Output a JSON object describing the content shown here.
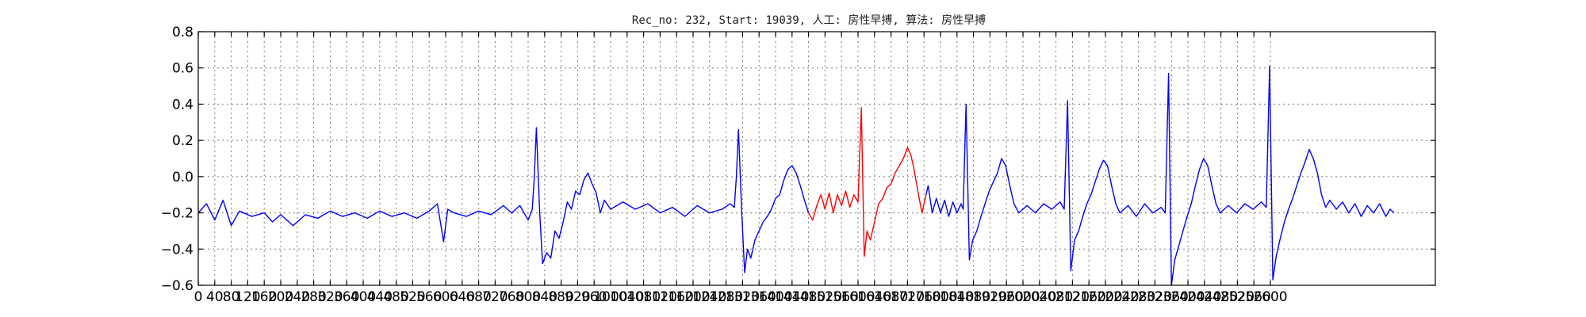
{
  "chart_data": {
    "type": "line",
    "title": "Rec_no: 232, Start: 19039, 人工: 房性早搏, 算法: 房性早搏",
    "xlabel": "",
    "ylabel": "",
    "xlim": [
      0,
      3000
    ],
    "ylim": [
      -0.6,
      0.8
    ],
    "grid": true,
    "yticks": [
      -0.6,
      -0.4,
      -0.2,
      0.0,
      0.2,
      0.4,
      0.6,
      0.8
    ],
    "ytick_labels": [
      "−0.6",
      "−0.4",
      "−0.2",
      "0.0",
      "0.2",
      "0.4",
      "0.6",
      "0.8"
    ],
    "xticks": [
      0,
      40,
      80,
      120,
      160,
      200,
      240,
      280,
      320,
      360,
      400,
      440,
      480,
      520,
      560,
      600,
      640,
      680,
      720,
      760,
      800,
      840,
      880,
      920,
      960,
      1000,
      1040,
      1080,
      1120,
      1160,
      1200,
      1240,
      1280,
      1320,
      1360,
      1400,
      1440,
      1480,
      1520,
      1560,
      1600,
      1640,
      1680,
      1720,
      1760,
      1800,
      1840,
      1880,
      1920,
      1960,
      2000,
      2040,
      2080,
      2120,
      2160,
      2200,
      2240,
      2280,
      2320,
      2360,
      2400,
      2440,
      2480,
      2520,
      2560,
      2600
    ],
    "xtick_labels": [
      "0",
      "40",
      "80",
      "120",
      "160",
      "200",
      "240",
      "280",
      "320",
      "360",
      "400",
      "440",
      "480",
      "520",
      "560",
      "600",
      "640",
      "680",
      "720",
      "760",
      "800",
      "840",
      "880",
      "920",
      "960",
      "1000",
      "1040",
      "1080",
      "1120",
      "1160",
      "1200",
      "1240",
      "1280",
      "1320",
      "1360",
      "1400",
      "1440",
      "1480",
      "1520",
      "1560",
      "1600",
      "1640",
      "1680",
      "1720",
      "1760",
      "1800",
      "1840",
      "1880",
      "1920",
      "1960",
      "2000",
      "2040",
      "2080",
      "2120",
      "2160",
      "2200",
      "2240",
      "2280",
      "2320",
      "2360",
      "2400",
      "2440",
      "2480",
      "2520",
      "2560",
      "2600"
    ],
    "series": [
      {
        "color": "#0000ff",
        "points": [
          [
            0,
            -0.2
          ],
          [
            20,
            -0.15
          ],
          [
            40,
            -0.24
          ],
          [
            60,
            -0.13
          ],
          [
            80,
            -0.27
          ],
          [
            100,
            -0.19
          ],
          [
            130,
            -0.22
          ],
          [
            160,
            -0.2
          ],
          [
            180,
            -0.25
          ],
          [
            200,
            -0.21
          ],
          [
            230,
            -0.27
          ],
          [
            260,
            -0.21
          ],
          [
            290,
            -0.23
          ],
          [
            320,
            -0.19
          ],
          [
            350,
            -0.22
          ],
          [
            380,
            -0.2
          ],
          [
            410,
            -0.23
          ],
          [
            440,
            -0.19
          ],
          [
            470,
            -0.22
          ],
          [
            500,
            -0.2
          ],
          [
            530,
            -0.23
          ],
          [
            560,
            -0.19
          ],
          [
            580,
            -0.15
          ],
          [
            595,
            -0.36
          ],
          [
            605,
            -0.18
          ],
          [
            620,
            -0.2
          ],
          [
            650,
            -0.22
          ],
          [
            680,
            -0.19
          ],
          [
            710,
            -0.21
          ],
          [
            740,
            -0.16
          ],
          [
            760,
            -0.2
          ],
          [
            780,
            -0.16
          ],
          [
            800,
            -0.24
          ],
          [
            810,
            -0.18
          ],
          [
            815,
            0.0
          ],
          [
            820,
            0.27
          ],
          [
            828,
            -0.2
          ],
          [
            835,
            -0.48
          ],
          [
            845,
            -0.42
          ],
          [
            855,
            -0.45
          ],
          [
            865,
            -0.3
          ],
          [
            875,
            -0.34
          ],
          [
            885,
            -0.25
          ],
          [
            895,
            -0.14
          ],
          [
            905,
            -0.18
          ],
          [
            915,
            -0.08
          ],
          [
            925,
            -0.1
          ],
          [
            935,
            -0.02
          ],
          [
            945,
            0.02
          ],
          [
            955,
            -0.04
          ],
          [
            965,
            -0.09
          ],
          [
            975,
            -0.2
          ],
          [
            985,
            -0.13
          ],
          [
            1000,
            -0.18
          ],
          [
            1030,
            -0.14
          ],
          [
            1060,
            -0.18
          ],
          [
            1090,
            -0.15
          ],
          [
            1120,
            -0.2
          ],
          [
            1150,
            -0.17
          ],
          [
            1180,
            -0.22
          ],
          [
            1210,
            -0.16
          ],
          [
            1240,
            -0.2
          ],
          [
            1270,
            -0.18
          ],
          [
            1290,
            -0.15
          ],
          [
            1300,
            -0.17
          ],
          [
            1305,
            0.0
          ],
          [
            1310,
            0.26
          ],
          [
            1318,
            -0.2
          ],
          [
            1325,
            -0.53
          ],
          [
            1332,
            -0.4
          ],
          [
            1340,
            -0.45
          ],
          [
            1350,
            -0.35
          ],
          [
            1360,
            -0.3
          ],
          [
            1370,
            -0.25
          ],
          [
            1380,
            -0.22
          ],
          [
            1390,
            -0.18
          ],
          [
            1400,
            -0.12
          ],
          [
            1410,
            -0.1
          ],
          [
            1420,
            -0.02
          ],
          [
            1430,
            0.04
          ],
          [
            1440,
            0.06
          ],
          [
            1450,
            0.02
          ],
          [
            1460,
            -0.05
          ],
          [
            1470,
            -0.13
          ],
          [
            1480,
            -0.2
          ]
        ]
      },
      {
        "color": "#ff0000",
        "points": [
          [
            1480,
            -0.2
          ],
          [
            1490,
            -0.24
          ],
          [
            1500,
            -0.16
          ],
          [
            1510,
            -0.1
          ],
          [
            1520,
            -0.18
          ],
          [
            1530,
            -0.09
          ],
          [
            1540,
            -0.2
          ],
          [
            1550,
            -0.1
          ],
          [
            1560,
            -0.16
          ],
          [
            1570,
            -0.08
          ],
          [
            1580,
            -0.17
          ],
          [
            1590,
            -0.1
          ],
          [
            1600,
            -0.14
          ],
          [
            1608,
            0.38
          ],
          [
            1615,
            -0.44
          ],
          [
            1622,
            -0.3
          ],
          [
            1630,
            -0.35
          ],
          [
            1640,
            -0.25
          ],
          [
            1650,
            -0.15
          ],
          [
            1660,
            -0.12
          ],
          [
            1670,
            -0.06
          ],
          [
            1680,
            -0.04
          ],
          [
            1690,
            0.02
          ],
          [
            1700,
            0.06
          ],
          [
            1710,
            0.1
          ],
          [
            1720,
            0.16
          ],
          [
            1728,
            0.12
          ],
          [
            1735,
            0.05
          ],
          [
            1745,
            -0.08
          ],
          [
            1755,
            -0.2
          ],
          [
            1765,
            -0.1
          ]
        ]
      },
      {
        "color": "#0000ff",
        "points": [
          [
            1765,
            -0.1
          ],
          [
            1770,
            -0.05
          ],
          [
            1780,
            -0.2
          ],
          [
            1790,
            -0.12
          ],
          [
            1800,
            -0.2
          ],
          [
            1810,
            -0.13
          ],
          [
            1820,
            -0.22
          ],
          [
            1830,
            -0.14
          ],
          [
            1840,
            -0.2
          ],
          [
            1850,
            -0.15
          ],
          [
            1855,
            -0.18
          ],
          [
            1862,
            0.4
          ],
          [
            1870,
            -0.46
          ],
          [
            1878,
            -0.35
          ],
          [
            1888,
            -0.3
          ],
          [
            1898,
            -0.22
          ],
          [
            1908,
            -0.15
          ],
          [
            1918,
            -0.08
          ],
          [
            1928,
            -0.03
          ],
          [
            1938,
            0.02
          ],
          [
            1948,
            0.1
          ],
          [
            1958,
            0.06
          ],
          [
            1968,
            -0.05
          ],
          [
            1978,
            -0.15
          ],
          [
            1990,
            -0.2
          ],
          [
            2010,
            -0.16
          ],
          [
            2030,
            -0.2
          ],
          [
            2050,
            -0.15
          ],
          [
            2070,
            -0.18
          ],
          [
            2090,
            -0.14
          ],
          [
            2100,
            -0.18
          ],
          [
            2108,
            0.42
          ],
          [
            2116,
            -0.52
          ],
          [
            2125,
            -0.35
          ],
          [
            2135,
            -0.3
          ],
          [
            2145,
            -0.22
          ],
          [
            2155,
            -0.15
          ],
          [
            2165,
            -0.1
          ],
          [
            2175,
            -0.03
          ],
          [
            2185,
            0.04
          ],
          [
            2195,
            0.09
          ],
          [
            2205,
            0.06
          ],
          [
            2215,
            -0.05
          ],
          [
            2225,
            -0.15
          ],
          [
            2235,
            -0.2
          ],
          [
            2255,
            -0.16
          ],
          [
            2275,
            -0.22
          ],
          [
            2295,
            -0.15
          ],
          [
            2315,
            -0.2
          ],
          [
            2335,
            -0.17
          ],
          [
            2345,
            -0.2
          ],
          [
            2353,
            0.57
          ],
          [
            2360,
            -0.6
          ],
          [
            2368,
            -0.46
          ],
          [
            2378,
            -0.38
          ],
          [
            2388,
            -0.3
          ],
          [
            2398,
            -0.22
          ],
          [
            2408,
            -0.15
          ],
          [
            2418,
            -0.05
          ],
          [
            2428,
            0.04
          ],
          [
            2438,
            0.1
          ],
          [
            2448,
            0.06
          ],
          [
            2458,
            -0.05
          ],
          [
            2468,
            -0.15
          ],
          [
            2478,
            -0.2
          ],
          [
            2498,
            -0.16
          ],
          [
            2518,
            -0.2
          ],
          [
            2538,
            -0.15
          ],
          [
            2558,
            -0.18
          ],
          [
            2578,
            -0.14
          ],
          [
            2590,
            -0.17
          ],
          [
            2598,
            0.61
          ],
          [
            2606,
            -0.57
          ],
          [
            2614,
            -0.44
          ],
          [
            2624,
            -0.34
          ],
          [
            2634,
            -0.25
          ],
          [
            2644,
            -0.18
          ],
          [
            2654,
            -0.12
          ],
          [
            2664,
            -0.05
          ],
          [
            2674,
            0.02
          ],
          [
            2684,
            0.08
          ],
          [
            2694,
            0.15
          ],
          [
            2704,
            0.1
          ],
          [
            2714,
            0.02
          ],
          [
            2724,
            -0.1
          ],
          [
            2734,
            -0.17
          ],
          [
            2744,
            -0.13
          ],
          [
            2760,
            -0.18
          ],
          [
            2775,
            -0.14
          ],
          [
            2790,
            -0.2
          ],
          [
            2805,
            -0.15
          ],
          [
            2820,
            -0.22
          ],
          [
            2835,
            -0.16
          ],
          [
            2850,
            -0.2
          ],
          [
            2865,
            -0.15
          ],
          [
            2880,
            -0.22
          ],
          [
            2890,
            -0.18
          ],
          [
            2900,
            -0.2
          ]
        ]
      }
    ]
  }
}
